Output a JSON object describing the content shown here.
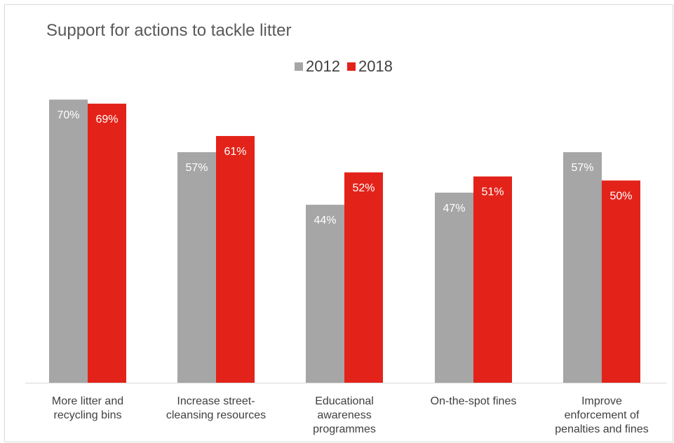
{
  "chart_data": {
    "type": "bar",
    "title": "Support for actions to tackle litter",
    "categories": [
      [
        "More litter and",
        "recycling bins"
      ],
      [
        "Increase street-",
        "cleansing resources"
      ],
      [
        "Educational",
        "awareness",
        "programmes"
      ],
      [
        "On-the-spot fines"
      ],
      [
        "Improve",
        "enforcement of",
        "penalties and fines"
      ]
    ],
    "series": [
      {
        "name": "2012",
        "color": "#a6a6a6",
        "values": [
          70,
          57,
          44,
          47,
          57
        ],
        "labels": [
          "70%",
          "57%",
          "44%",
          "47%",
          "57%"
        ]
      },
      {
        "name": "2018",
        "color": "#e3231a",
        "values": [
          69,
          61,
          52,
          51,
          50
        ],
        "labels": [
          "69%",
          "61%",
          "52%",
          "51%",
          "50%"
        ]
      }
    ],
    "xlabel": "",
    "ylabel": "",
    "ylim": [
      0,
      80
    ],
    "grid": false,
    "legend_position": "top"
  }
}
